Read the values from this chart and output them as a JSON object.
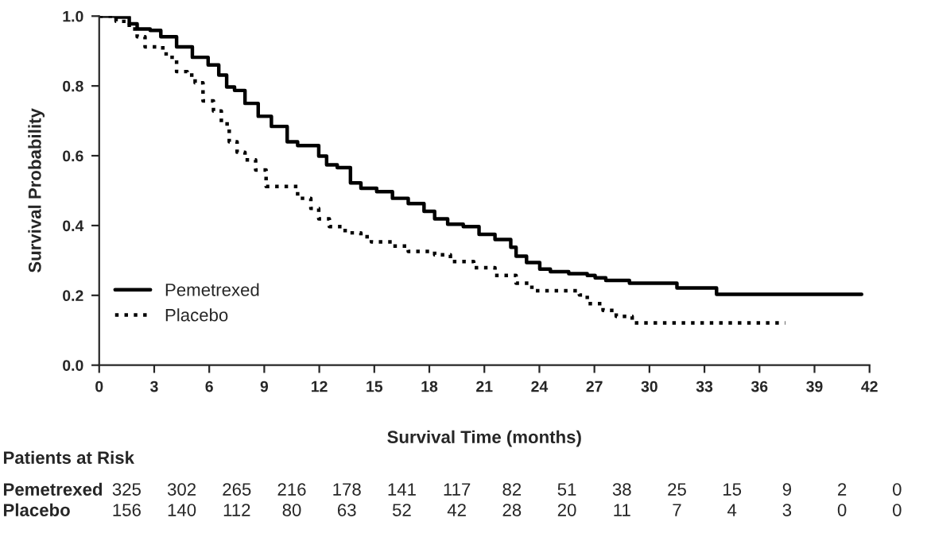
{
  "chart_data": {
    "type": "step",
    "xlabel": "Survival Time (months)",
    "ylabel": "Survival Probability",
    "xlim": [
      0,
      42
    ],
    "xticks": [
      0,
      3,
      6,
      9,
      12,
      15,
      18,
      21,
      24,
      27,
      30,
      33,
      36,
      39,
      42
    ],
    "ylim": [
      0,
      1
    ],
    "yticks": [
      {
        "value": 0,
        "label": "0.0"
      },
      {
        "value": 0.2,
        "label": "0.2"
      },
      {
        "value": 0.4,
        "label": "0.4"
      },
      {
        "value": 0.6,
        "label": "0.6"
      },
      {
        "value": 0.8,
        "label": "0.8"
      },
      {
        "value": 1,
        "label": "1.0"
      }
    ],
    "grid": false,
    "legend": "bottom left",
    "series": [
      {
        "name": "Pemetrexed",
        "color": "#000000",
        "line_style": "solid",
        "x": [
          0,
          0.9,
          1.64,
          2.07,
          2.78,
          3.36,
          4.22,
          5.08,
          5.94,
          6.52,
          6.95,
          7.38,
          7.95,
          8.67,
          9.39,
          10.25,
          10.82,
          11.97,
          12.4,
          12.98,
          13.7,
          14.27,
          15.13,
          15.99,
          16.85,
          17.71,
          18.29,
          19.0,
          19.85,
          20.71,
          21.58,
          22.44,
          22.73,
          23.3,
          24.02,
          24.6,
          25.6,
          26.61,
          27.04,
          27.62,
          28.91,
          31.5,
          33.66,
          41.57
        ],
        "values": [
          1.0,
          0.997,
          0.978,
          0.963,
          0.959,
          0.941,
          0.912,
          0.882,
          0.86,
          0.831,
          0.797,
          0.787,
          0.75,
          0.713,
          0.684,
          0.64,
          0.629,
          0.599,
          0.574,
          0.566,
          0.522,
          0.507,
          0.497,
          0.478,
          0.463,
          0.441,
          0.419,
          0.404,
          0.397,
          0.375,
          0.36,
          0.338,
          0.312,
          0.294,
          0.275,
          0.268,
          0.262,
          0.257,
          0.25,
          0.243,
          0.235,
          0.221,
          0.203,
          0.203
        ]
      },
      {
        "name": "Placebo",
        "color": "#000000",
        "line_style": "dotted",
        "x": [
          0,
          0.92,
          1.64,
          2.07,
          2.5,
          3.2,
          3.65,
          4.22,
          4.8,
          5.23,
          5.66,
          6.23,
          6.66,
          7.09,
          7.52,
          7.95,
          8.53,
          9.1,
          10.25,
          10.82,
          11.54,
          11.97,
          12.55,
          13.41,
          14.27,
          14.84,
          15.99,
          16.85,
          18.29,
          19.15,
          20.42,
          21.58,
          22.73,
          23.59,
          25.03,
          26.18,
          26.61,
          27.47,
          28.19,
          29.06,
          37.4
        ],
        "values": [
          1.0,
          0.985,
          0.963,
          0.941,
          0.912,
          0.909,
          0.882,
          0.841,
          0.831,
          0.809,
          0.757,
          0.728,
          0.691,
          0.64,
          0.61,
          0.588,
          0.559,
          0.512,
          0.512,
          0.478,
          0.449,
          0.419,
          0.397,
          0.379,
          0.368,
          0.353,
          0.341,
          0.326,
          0.316,
          0.297,
          0.279,
          0.257,
          0.235,
          0.213,
          0.213,
          0.201,
          0.176,
          0.157,
          0.14,
          0.121,
          0.121
        ]
      }
    ],
    "annotations": [
      "Patients at Risk",
      "Pemetrexed 325 302 265 216 178 141 117 82 51 38 25 15 9 2 0",
      "Placebo 156 140 112 80 63 52 42 28 20 11 7 4 3 0 0"
    ]
  }
}
